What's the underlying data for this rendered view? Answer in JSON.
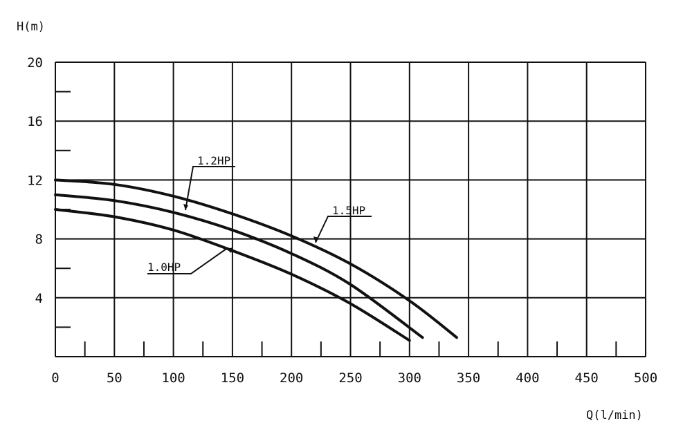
{
  "chart_data": {
    "type": "line",
    "title": "",
    "xlabel": "Q(l/min)",
    "ylabel": "H(m)",
    "xlim": [
      0,
      500
    ],
    "ylim": [
      0,
      20
    ],
    "grid": true,
    "x_ticks": [
      "0",
      "50",
      "100",
      "150",
      "200",
      "250",
      "300",
      "350",
      "400",
      "450",
      "500"
    ],
    "y_ticks": [
      "4",
      "8",
      "12",
      "16",
      "20"
    ],
    "series": [
      {
        "name": "1.0HP",
        "x": [
          0,
          50,
          100,
          150,
          200,
          250,
          300
        ],
        "y": [
          10,
          9.5,
          8.6,
          7.2,
          5.6,
          3.6,
          1.1
        ]
      },
      {
        "name": "1.2HP",
        "x": [
          0,
          50,
          100,
          150,
          200,
          250,
          311
        ],
        "y": [
          11,
          10.6,
          9.8,
          8.6,
          7,
          4.9,
          1.3
        ]
      },
      {
        "name": "1.5HP",
        "x": [
          0,
          50,
          100,
          150,
          200,
          250,
          300,
          340
        ],
        "y": [
          12,
          11.7,
          10.9,
          9.7,
          8.2,
          6.3,
          3.8,
          1.3
        ]
      }
    ]
  }
}
